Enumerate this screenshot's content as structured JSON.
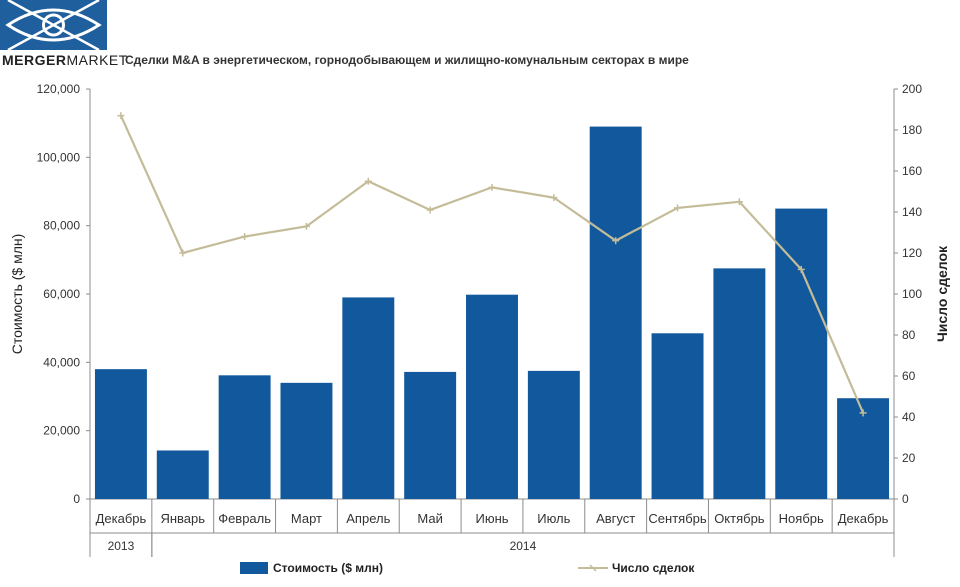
{
  "brand": {
    "name_part1": "MERGER",
    "name_part2": "MARKET"
  },
  "chart_data": {
    "type": "bar",
    "title": "Сделки M&A в энергетическом, горнодобывающем и жилищно-комунальным секторах в мире",
    "ylabel": "Стоимость  ($ млн)",
    "y2label": "Число сделок",
    "categories": [
      "Декабрь",
      "Январь",
      "Февраль",
      "Март",
      "Апрель",
      "Май",
      "Июнь",
      "Июль",
      "Август",
      "Сентябрь",
      "Октябрь",
      "Ноябрь",
      "Декабрь"
    ],
    "year_groups": [
      {
        "label": "2013",
        "start": 0,
        "end": 0
      },
      {
        "label": "2014",
        "start": 1,
        "end": 12
      }
    ],
    "ylim": [
      0,
      120000
    ],
    "y2lim": [
      0,
      200
    ],
    "yticks": [
      "0",
      "20,000",
      "40,000",
      "60,000",
      "80,000",
      "100,000",
      "120,000"
    ],
    "y2ticks": [
      "0",
      "20",
      "40",
      "60",
      "80",
      "100",
      "120",
      "140",
      "160",
      "180",
      "200"
    ],
    "series": [
      {
        "name": "Стоимость ($ млн)",
        "type": "bar",
        "color": "#11599c",
        "values": [
          38000,
          14200,
          36200,
          34000,
          59000,
          37200,
          59800,
          37500,
          109000,
          48500,
          67500,
          85000,
          29500
        ]
      },
      {
        "name": "Число сделок",
        "type": "line",
        "axis": "right",
        "color": "#c4bc98",
        "values": [
          187,
          120,
          128,
          133,
          155,
          141,
          152,
          147,
          126,
          142,
          145,
          112,
          42
        ]
      }
    ],
    "grid": false,
    "legend": "bottom"
  }
}
